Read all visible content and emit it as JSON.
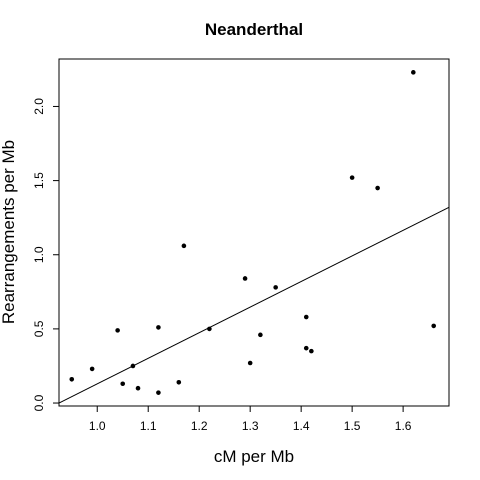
{
  "chart_data": {
    "type": "scatter",
    "title": "Neanderthal",
    "xlabel": "cM per Mb",
    "ylabel": "Rearrangements per Mb",
    "xlim": [
      0.925,
      1.69
    ],
    "ylim": [
      -0.02,
      2.32
    ],
    "x_ticks": [
      1.0,
      1.1,
      1.2,
      1.3,
      1.4,
      1.5,
      1.6
    ],
    "x_tick_labels": [
      "1.0",
      "1.1",
      "1.2",
      "1.3",
      "1.4",
      "1.5",
      "1.6"
    ],
    "y_ticks": [
      0.0,
      0.5,
      1.0,
      1.5,
      2.0
    ],
    "y_tick_labels": [
      "0.0",
      "0.5",
      "1.0",
      "1.5",
      "2.0"
    ],
    "grid": false,
    "legend": false,
    "point_color": "#000000",
    "points": [
      {
        "x": 0.95,
        "y": 0.16
      },
      {
        "x": 0.99,
        "y": 0.23
      },
      {
        "x": 1.04,
        "y": 0.49
      },
      {
        "x": 1.05,
        "y": 0.13
      },
      {
        "x": 1.07,
        "y": 0.25
      },
      {
        "x": 1.08,
        "y": 0.1
      },
      {
        "x": 1.12,
        "y": 0.07
      },
      {
        "x": 1.12,
        "y": 0.51
      },
      {
        "x": 1.16,
        "y": 0.14
      },
      {
        "x": 1.17,
        "y": 1.06
      },
      {
        "x": 1.22,
        "y": 0.5
      },
      {
        "x": 1.29,
        "y": 0.84
      },
      {
        "x": 1.3,
        "y": 0.27
      },
      {
        "x": 1.32,
        "y": 0.46
      },
      {
        "x": 1.35,
        "y": 0.78
      },
      {
        "x": 1.41,
        "y": 0.58
      },
      {
        "x": 1.41,
        "y": 0.37
      },
      {
        "x": 1.42,
        "y": 0.35
      },
      {
        "x": 1.5,
        "y": 1.52
      },
      {
        "x": 1.55,
        "y": 1.45
      },
      {
        "x": 1.62,
        "y": 2.23
      },
      {
        "x": 1.66,
        "y": 0.52
      }
    ],
    "fit_line": {
      "x0": 0.925,
      "y0": 0.0,
      "x1": 1.69,
      "y1": 1.32
    }
  }
}
